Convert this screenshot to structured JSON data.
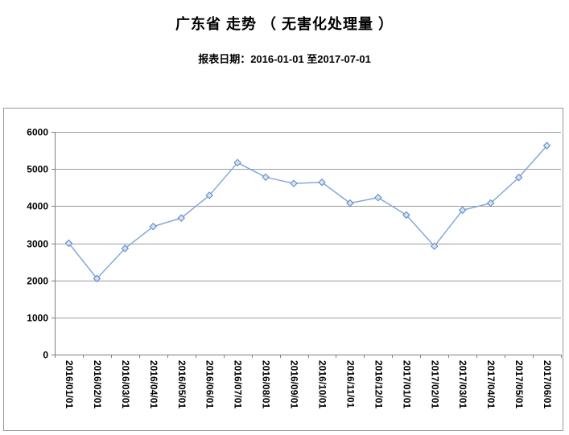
{
  "page": {
    "title": "广东省 走势 （ 无害化处理量 ）",
    "report_date_line": "报表日期：2016-01-01 至2017-07-01"
  },
  "chart_data": {
    "type": "line",
    "title": "广东省 走势 （ 无害化处理量 ）",
    "report_period": {
      "from": "2016-01-01",
      "to": "2017-07-01"
    },
    "x": [
      "2016/01/01",
      "2016/02/01",
      "2016/03/01",
      "2016/04/01",
      "2016/05/01",
      "2016/06/01",
      "2016/07/01",
      "2016/08/01",
      "2016/09/01",
      "2016/10/01",
      "2016/11/01",
      "2016/12/01",
      "2017/01/01",
      "2017/02/01",
      "2017/03/01",
      "2017/04/01",
      "2017/05/01",
      "2017/06/01"
    ],
    "series": [
      {
        "name": "无害化处理量",
        "values": [
          3000,
          2050,
          2860,
          3450,
          3680,
          4290,
          5170,
          4780,
          4610,
          4640,
          4080,
          4230,
          3760,
          2920,
          3890,
          4080,
          4770,
          5630
        ]
      }
    ],
    "ylim": [
      0,
      6000
    ],
    "yticks": [
      0,
      1000,
      2000,
      3000,
      4000,
      5000,
      6000
    ],
    "xlabel": "",
    "ylabel": "",
    "grid": true,
    "legend": false,
    "x_label_rotation_deg": 90,
    "marker": "diamond",
    "colors": {
      "line": "#85a8db",
      "marker_stroke": "#5585c4",
      "marker_fill": "#d6e2f2",
      "grid": "#9a9a9a",
      "axis": "#7f7f7f",
      "text": "#000000"
    }
  }
}
